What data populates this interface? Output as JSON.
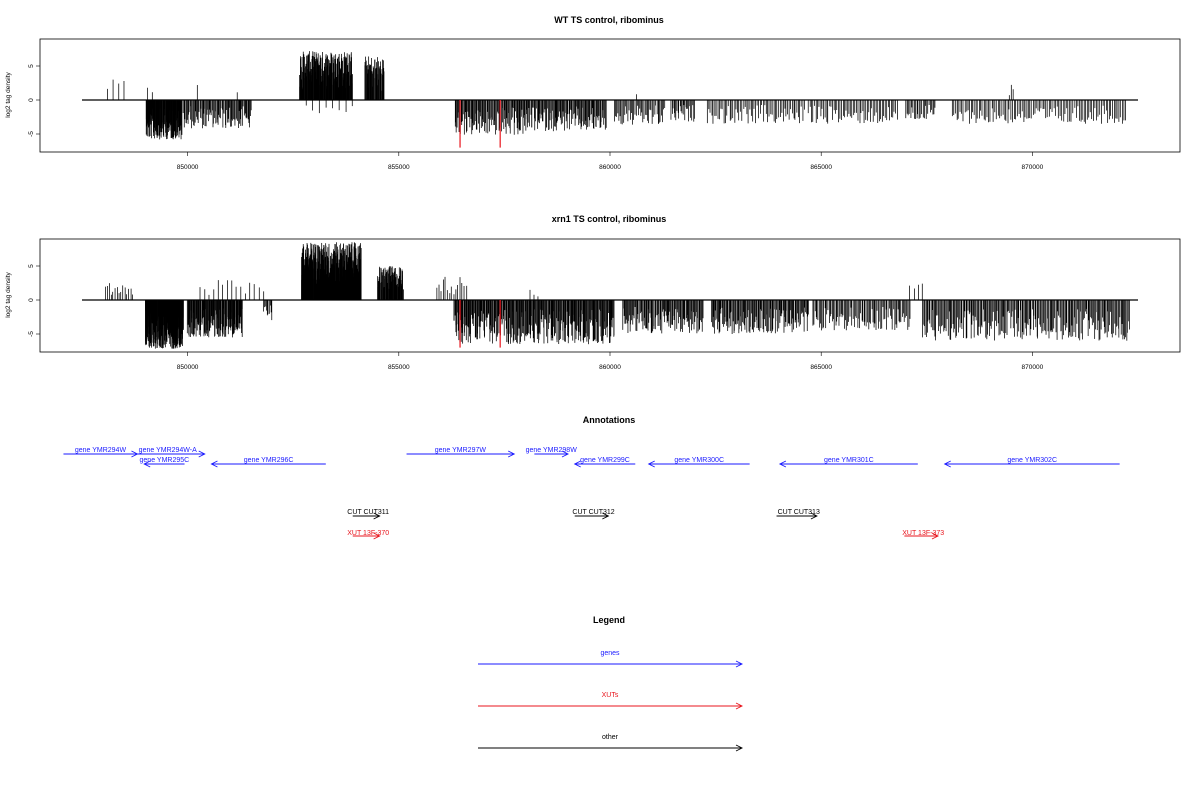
{
  "chart_data": [
    {
      "type": "bar",
      "title": "WT TS control, ribominus",
      "xlabel": "",
      "ylabel": "log2 tag density",
      "xlim": [
        847500,
        872500
      ],
      "ylim": [
        -7.5,
        9
      ],
      "xticks": [
        850000,
        855000,
        860000,
        865000,
        870000
      ],
      "xtick_labels": [
        "850000",
        "855000",
        "860000",
        "865000",
        "870000"
      ],
      "yticks": [
        -5,
        0,
        5
      ],
      "ytick_labels": [
        "-5",
        "0",
        "5"
      ],
      "grid": false,
      "markers": [
        {
          "x": 856450,
          "value": -7,
          "color": "#e8141c"
        },
        {
          "x": 857400,
          "value": -7,
          "color": "#e8141c"
        }
      ],
      "segments": [
        {
          "start": 848100,
          "end": 848500,
          "sign": 1,
          "max": 3,
          "density": 4
        },
        {
          "start": 849050,
          "end": 849160,
          "sign": 1,
          "max": 2,
          "density": 2
        },
        {
          "start": 850200,
          "end": 850260,
          "sign": 1,
          "max": 2.5,
          "density": 1
        },
        {
          "start": 851150,
          "end": 851200,
          "sign": 1,
          "max": 2.5,
          "density": 1
        },
        {
          "start": 849020,
          "end": 849860,
          "sign": -1,
          "max": -5.8,
          "density": 140
        },
        {
          "start": 849900,
          "end": 851500,
          "sign": -1,
          "max": -4.2,
          "density": 90
        },
        {
          "start": 852650,
          "end": 853900,
          "sign": 1,
          "max": 7.2,
          "density": 220
        },
        {
          "start": 852800,
          "end": 853900,
          "sign": -1,
          "max": -2,
          "density": 8
        },
        {
          "start": 854200,
          "end": 854650,
          "sign": 1,
          "max": 6.5,
          "density": 50
        },
        {
          "start": 856330,
          "end": 858000,
          "sign": -1,
          "max": -5.2,
          "density": 100
        },
        {
          "start": 858000,
          "end": 859900,
          "sign": -1,
          "max": -4.6,
          "density": 110
        },
        {
          "start": 860100,
          "end": 861300,
          "sign": -1,
          "max": -3.8,
          "density": 45
        },
        {
          "start": 861450,
          "end": 862000,
          "sign": -1,
          "max": -3.2,
          "density": 25
        },
        {
          "start": 862300,
          "end": 864600,
          "sign": -1,
          "max": -3.5,
          "density": 65
        },
        {
          "start": 864700,
          "end": 866800,
          "sign": -1,
          "max": -3.5,
          "density": 60
        },
        {
          "start": 867000,
          "end": 867700,
          "sign": -1,
          "max": -3,
          "density": 25
        },
        {
          "start": 868100,
          "end": 872200,
          "sign": -1,
          "max": -3.5,
          "density": 110
        },
        {
          "start": 860600,
          "end": 860650,
          "sign": 1,
          "max": 1.5,
          "density": 1
        },
        {
          "start": 869450,
          "end": 869550,
          "sign": 1,
          "max": 2.3,
          "density": 3
        }
      ]
    },
    {
      "type": "bar",
      "title": "xrn1 TS control, ribominus",
      "xlabel": "",
      "ylabel": "log2 tag density",
      "xlim": [
        847500,
        872500
      ],
      "ylim": [
        -7.5,
        9
      ],
      "xticks": [
        850000,
        855000,
        860000,
        865000,
        870000
      ],
      "xtick_labels": [
        "850000",
        "855000",
        "860000",
        "865000",
        "870000"
      ],
      "yticks": [
        -5,
        0,
        5
      ],
      "ytick_labels": [
        "-5",
        "0",
        "5"
      ],
      "grid": false,
      "markers": [
        {
          "x": 856450,
          "value": -7,
          "color": "#e8141c"
        },
        {
          "x": 857400,
          "value": -7,
          "color": "#e8141c"
        }
      ],
      "segments": [
        {
          "start": 848050,
          "end": 848700,
          "sign": 1,
          "max": 2.5,
          "density": 15
        },
        {
          "start": 849000,
          "end": 849900,
          "sign": -1,
          "max": -7.2,
          "density": 200
        },
        {
          "start": 850000,
          "end": 851300,
          "sign": -1,
          "max": -5.5,
          "density": 140
        },
        {
          "start": 850300,
          "end": 851800,
          "sign": 1,
          "max": 3,
          "density": 15
        },
        {
          "start": 851800,
          "end": 852000,
          "sign": -1,
          "max": -3,
          "density": 10
        },
        {
          "start": 852700,
          "end": 854100,
          "sign": 1,
          "max": 8.5,
          "density": 320
        },
        {
          "start": 854500,
          "end": 855100,
          "sign": 1,
          "max": 5,
          "density": 80
        },
        {
          "start": 855900,
          "end": 856600,
          "sign": 1,
          "max": 3.5,
          "density": 15
        },
        {
          "start": 856300,
          "end": 860100,
          "sign": -1,
          "max": -6.5,
          "density": 280
        },
        {
          "start": 858100,
          "end": 858300,
          "sign": 1,
          "max": 1.5,
          "density": 3
        },
        {
          "start": 860300,
          "end": 862200,
          "sign": -1,
          "max": -5,
          "density": 110
        },
        {
          "start": 862400,
          "end": 864700,
          "sign": -1,
          "max": -5,
          "density": 130
        },
        {
          "start": 864800,
          "end": 867100,
          "sign": -1,
          "max": -4.5,
          "density": 90
        },
        {
          "start": 867100,
          "end": 867400,
          "sign": 1,
          "max": 2.8,
          "density": 4
        },
        {
          "start": 867400,
          "end": 872300,
          "sign": -1,
          "max": -6,
          "density": 220
        }
      ]
    }
  ],
  "annotations": {
    "title": "Annotations",
    "genes": [
      {
        "label": "gene YMR294W",
        "start": 847200,
        "end": 848300,
        "strand": "+",
        "row": 0
      },
      {
        "label": "gene YMR294W-A",
        "start": 848200,
        "end": 849300,
        "strand": "+",
        "row": 0
      },
      {
        "label": "gene YMR295C",
        "start": 848400,
        "end": 849000,
        "strand": "-",
        "row": 1
      },
      {
        "label": "gene YMR296C",
        "start": 849400,
        "end": 851100,
        "strand": "-",
        "row": 1
      },
      {
        "label": "gene YMR297W",
        "start": 852300,
        "end": 853900,
        "strand": "+",
        "row": 0
      },
      {
        "label": "gene YMR298W",
        "start": 854200,
        "end": 854700,
        "strand": "+",
        "row": 0
      },
      {
        "label": "gene YMR299C",
        "start": 854800,
        "end": 855700,
        "strand": "-",
        "row": 1
      },
      {
        "label": "gene YMR300C",
        "start": 855900,
        "end": 857400,
        "strand": "-",
        "row": 1
      },
      {
        "label": "gene YMR301C",
        "start": 857850,
        "end": 859900,
        "strand": "-",
        "row": 1
      },
      {
        "label": "gene YMR302C",
        "start": 860300,
        "end": 862900,
        "strand": "-",
        "row": 1
      }
    ],
    "other": [
      {
        "label": "CUT CUT311",
        "start": 851500,
        "end": 851900,
        "strand": "+"
      },
      {
        "label": "CUT CUT312",
        "start": 854800,
        "end": 855300,
        "strand": "+"
      },
      {
        "label": "CUT CUT313",
        "start": 857800,
        "end": 858400,
        "strand": "+"
      }
    ],
    "xuts": [
      {
        "label": "XUT 13F-370",
        "start": 851500,
        "end": 851900,
        "strand": "+"
      },
      {
        "label": "XUT 13F-373",
        "start": 859700,
        "end": 860200,
        "strand": "+"
      }
    ]
  },
  "legend": {
    "title": "Legend",
    "items": [
      {
        "label": "genes",
        "color": "#1a1aff"
      },
      {
        "label": "XUTs",
        "color": "#e8141c"
      },
      {
        "label": "other",
        "color": "#000000"
      }
    ]
  }
}
